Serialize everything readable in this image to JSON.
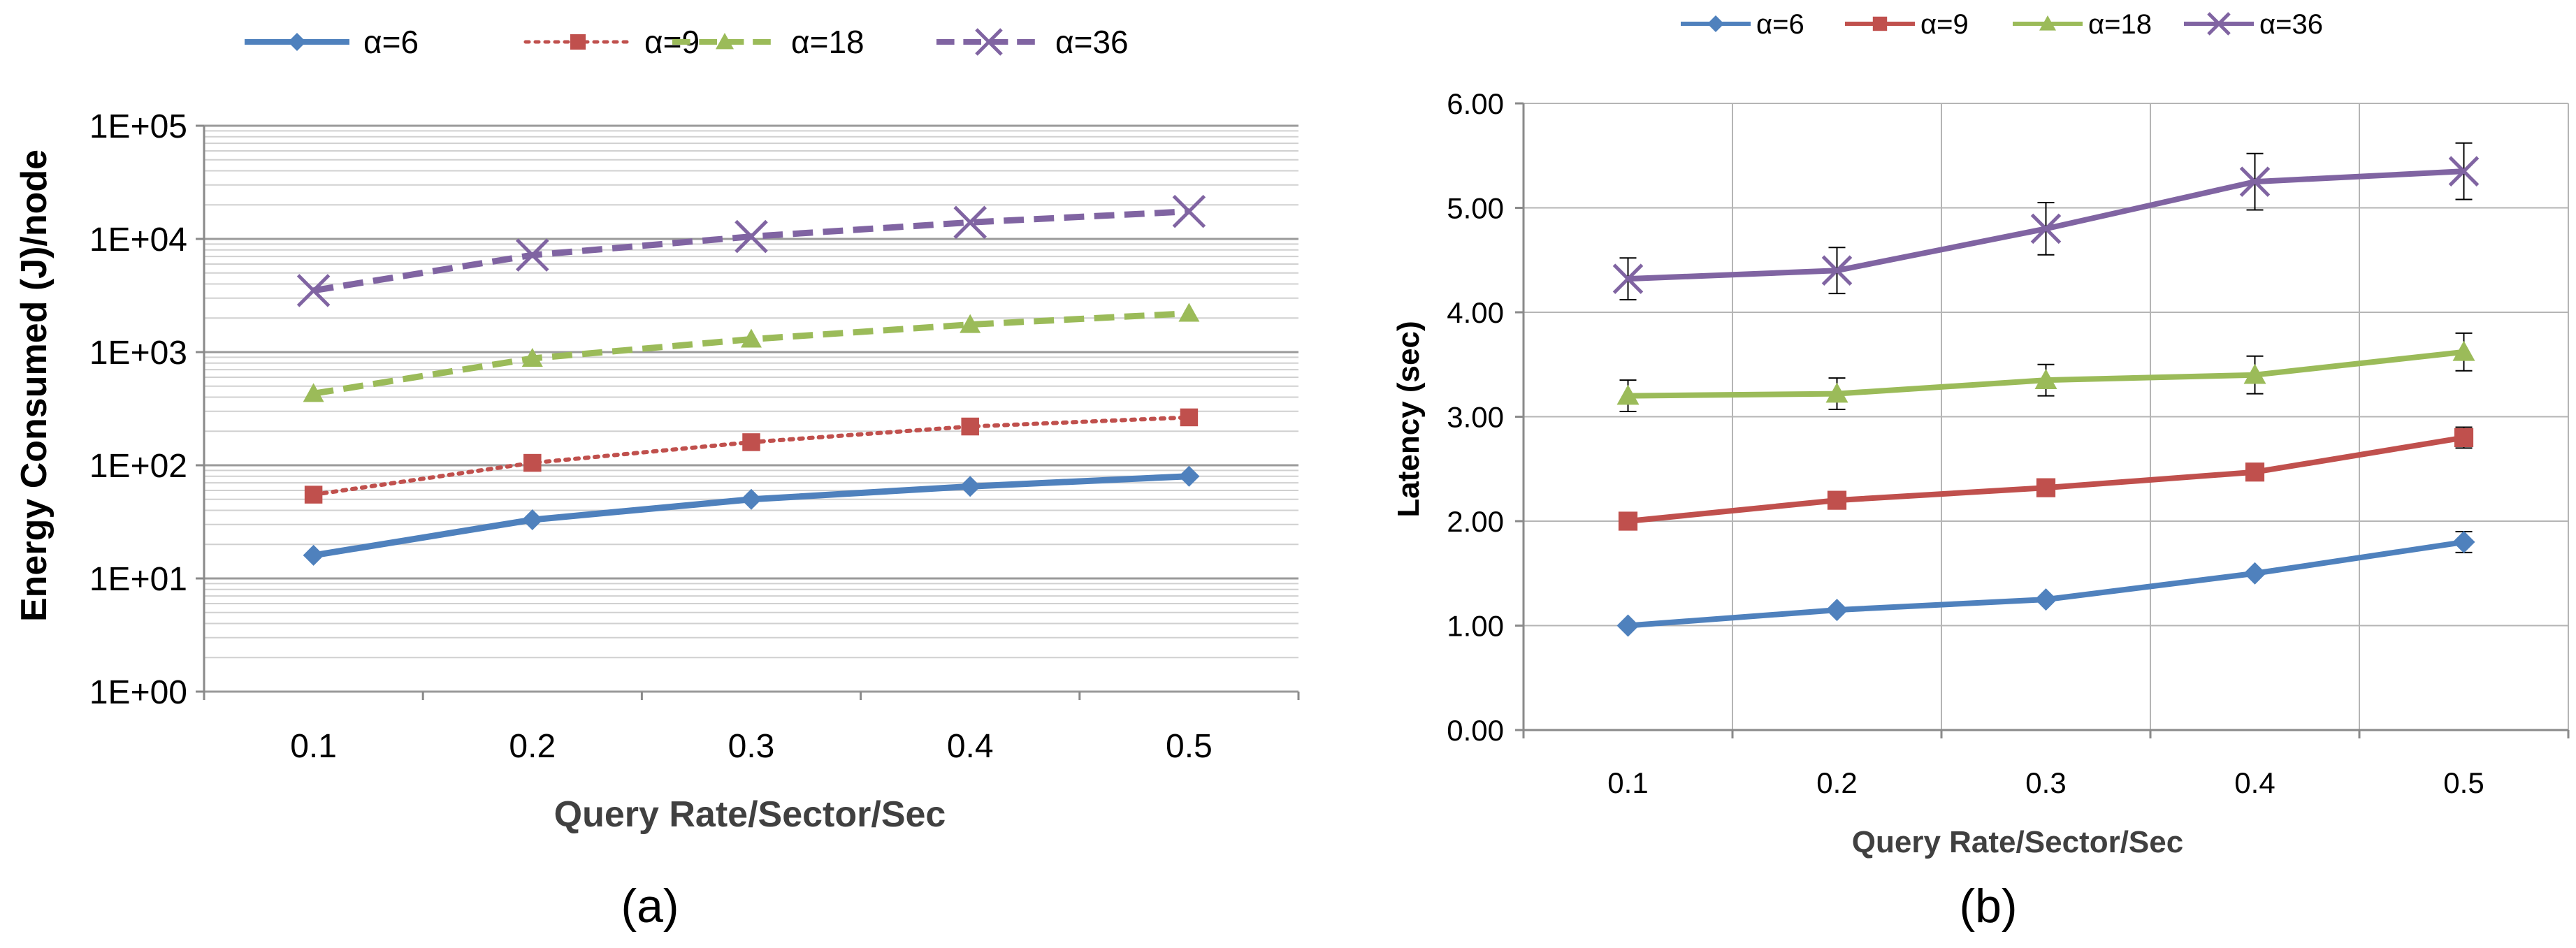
{
  "chart_data": [
    {
      "panel_label": "(a)",
      "type": "line",
      "yscale": "log",
      "title": "",
      "xlabel": "Query Rate/Sector/Sec",
      "ylabel": "Energy Consumed (J)/node",
      "categories": [
        "0.1",
        "0.2",
        "0.3",
        "0.4",
        "0.5"
      ],
      "ylim": [
        1,
        100000
      ],
      "ytick_labels": [
        "1E+00",
        "1E+01",
        "1E+02",
        "1E+03",
        "1E+04",
        "1E+05"
      ],
      "legend_position": "top",
      "series": [
        {
          "name": "α=6",
          "values": [
            16,
            33,
            50,
            65,
            80
          ],
          "color": "#4f81bd",
          "line": "solid",
          "marker": "diamond"
        },
        {
          "name": "α=9",
          "values": [
            55,
            105,
            160,
            220,
            265
          ],
          "color": "#c0504d",
          "line": "dotted",
          "marker": "square"
        },
        {
          "name": "α=18",
          "values": [
            430,
            880,
            1300,
            1750,
            2200
          ],
          "color": "#9bbb59",
          "line": "dashed",
          "marker": "triangle"
        },
        {
          "name": "α=36",
          "values": [
            3500,
            7200,
            10500,
            14000,
            17500
          ],
          "color": "#8064a2",
          "line": "dashed",
          "marker": "x"
        }
      ]
    },
    {
      "panel_label": "(b)",
      "type": "line",
      "yscale": "linear",
      "title": "",
      "xlabel": "Query Rate/Sector/Sec",
      "ylabel": "Latency (sec)",
      "categories": [
        "0.1",
        "0.2",
        "0.3",
        "0.4",
        "0.5"
      ],
      "ylim": [
        0,
        6
      ],
      "ytick_labels": [
        "0.00",
        "1.00",
        "2.00",
        "3.00",
        "4.00",
        "5.00",
        "6.00"
      ],
      "legend_position": "top",
      "series": [
        {
          "name": "α=6",
          "values": [
            1.0,
            1.15,
            1.25,
            1.5,
            1.8
          ],
          "error": [
            0,
            0,
            0,
            0,
            0.1
          ],
          "color": "#4f81bd",
          "marker": "diamond"
        },
        {
          "name": "α=9",
          "values": [
            2.0,
            2.2,
            2.32,
            2.47,
            2.8
          ],
          "error": [
            0,
            0,
            0,
            0,
            0.1
          ],
          "color": "#c0504d",
          "marker": "square"
        },
        {
          "name": "α=18",
          "values": [
            3.2,
            3.22,
            3.35,
            3.4,
            3.62
          ],
          "error": [
            0.15,
            0.15,
            0.15,
            0.18,
            0.18
          ],
          "color": "#9bbb59",
          "marker": "triangle"
        },
        {
          "name": "α=36",
          "values": [
            4.32,
            4.4,
            4.8,
            5.25,
            5.35
          ],
          "error": [
            0.2,
            0.22,
            0.25,
            0.27,
            0.27
          ],
          "color": "#8064a2",
          "marker": "x"
        }
      ]
    }
  ]
}
